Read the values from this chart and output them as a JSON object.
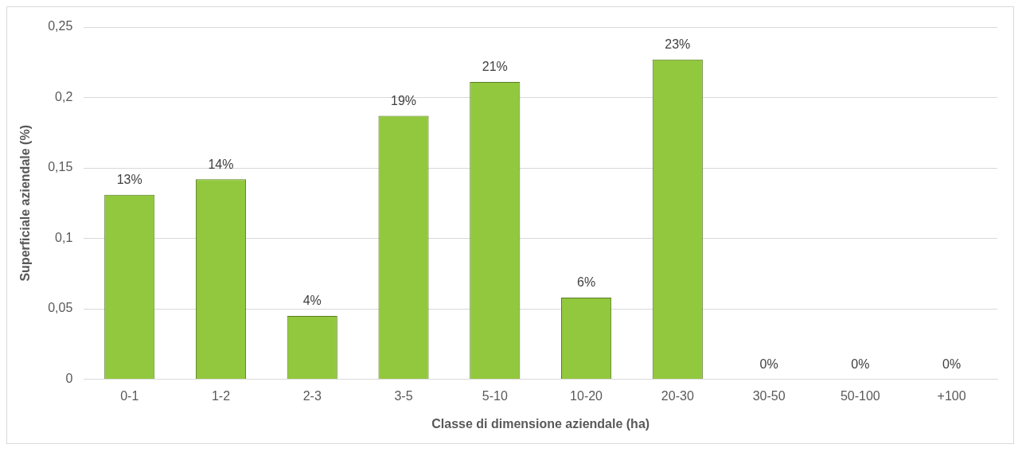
{
  "chart_data": {
    "type": "bar",
    "xlabel": "Classe di dimensione aziendale (ha)",
    "ylabel": "Superficiale aziendale (%)",
    "categories": [
      "0-1",
      "1-2",
      "2-3",
      "3-5",
      "5-10",
      "10-20",
      "20-30",
      "30-50",
      "50-100",
      "+100"
    ],
    "values": [
      0.131,
      0.142,
      0.045,
      0.187,
      0.211,
      0.058,
      0.227,
      0,
      0,
      0
    ],
    "value_labels": [
      "13%",
      "14%",
      "4%",
      "19%",
      "21%",
      "6%",
      "23%",
      "0%",
      "0%",
      "0%"
    ],
    "color": "#92c83e",
    "ylim": [
      0,
      0.25
    ],
    "yticks": [
      {
        "value": 0,
        "label": "0"
      },
      {
        "value": 0.05,
        "label": "0,05"
      },
      {
        "value": 0.1,
        "label": "0,1"
      },
      {
        "value": 0.15,
        "label": "0,15"
      },
      {
        "value": 0.2,
        "label": "0,2"
      },
      {
        "value": 0.25,
        "label": "0,25"
      }
    ],
    "grid": "y",
    "legend": false
  }
}
